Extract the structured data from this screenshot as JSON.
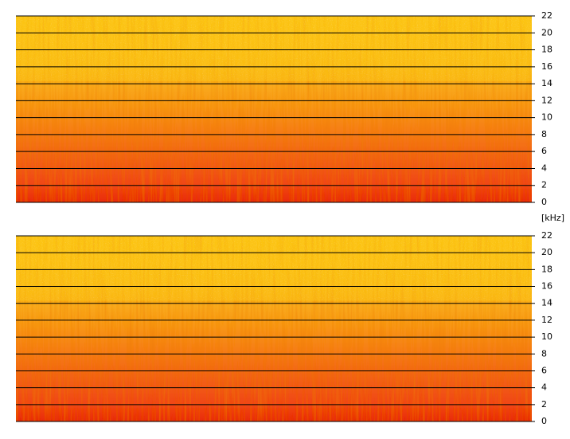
{
  "chart_data": [
    {
      "type": "spectrogram",
      "unit_label": "[kHz]",
      "ylim": [
        0,
        22
      ],
      "yticks": [
        0,
        2,
        4,
        6,
        8,
        10,
        12,
        14,
        16,
        18,
        20,
        22
      ],
      "grid": true
    },
    {
      "type": "spectrogram",
      "ylim": [
        0,
        22
      ],
      "yticks": [
        0,
        2,
        4,
        6,
        8,
        10,
        12,
        14,
        16,
        18,
        20,
        22
      ],
      "grid": true
    }
  ]
}
